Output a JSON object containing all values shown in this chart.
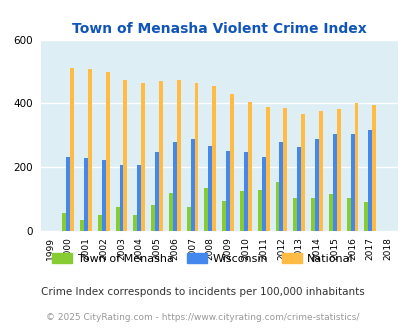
{
  "title": "Town of Menasha Violent Crime Index",
  "title_color": "#1155bb",
  "footnote1": "Crime Index corresponds to incidents per 100,000 inhabitants",
  "footnote2": "© 2025 CityRating.com - https://www.cityrating.com/crime-statistics/",
  "years": [
    1999,
    2000,
    2001,
    2002,
    2003,
    2004,
    2005,
    2006,
    2007,
    2008,
    2009,
    2010,
    2011,
    2012,
    2013,
    2014,
    2015,
    2016,
    2017,
    2018
  ],
  "menasha": [
    0,
    55,
    35,
    50,
    75,
    50,
    80,
    120,
    75,
    135,
    95,
    125,
    130,
    155,
    105,
    105,
    115,
    105,
    90,
    0
  ],
  "wisconsin": [
    0,
    232,
    228,
    222,
    207,
    208,
    248,
    280,
    288,
    268,
    252,
    247,
    232,
    280,
    264,
    287,
    303,
    303,
    318,
    0
  ],
  "national": [
    0,
    510,
    508,
    497,
    474,
    463,
    469,
    474,
    464,
    455,
    430,
    404,
    390,
    387,
    367,
    375,
    382,
    400,
    394,
    0
  ],
  "bg_color": "#ddeef4",
  "menasha_color": "#88cc33",
  "wisconsin_color": "#4488ee",
  "national_color": "#ffbb44",
  "ylim": [
    0,
    600
  ],
  "yticks": [
    0,
    200,
    400,
    600
  ],
  "bar_width": 0.22,
  "legend_labels": [
    "Town of Menasha",
    "Wisconsin",
    "National"
  ]
}
